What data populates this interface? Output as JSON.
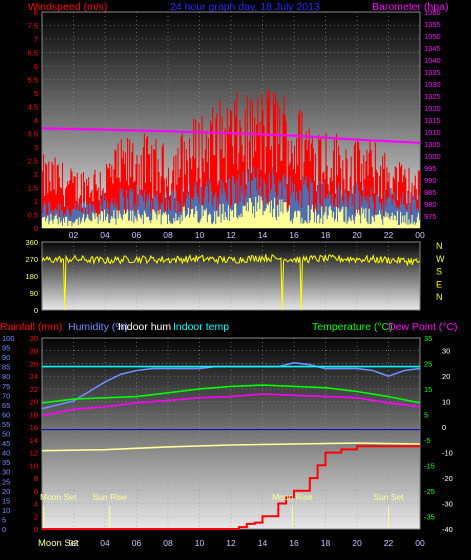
{
  "header": {
    "title": "24 hour graph day, 18 July 2013",
    "left_label": "Windspeed (m/s)",
    "right_label": "Barometer (hpa)"
  },
  "legend": {
    "rainfall": "Rainfall (mm)",
    "humidity": "Humidity (%)",
    "indoor_hum": "Indoor hum",
    "indoor_temp": "Indoor temp",
    "temperature": "Temperature (°C)",
    "dew_point": "Dew Point (°C)"
  },
  "colors": {
    "wind_red": "#ff0000",
    "wind_blue": "#4f6fb0",
    "wind_yellow": "#ffff99",
    "pressure": "#ff00ff",
    "direction": "#ffff00",
    "rain": "#ff0000",
    "humidity": "#6f8fff",
    "indoor_hum": "#ffffff",
    "indoor_temp": "#00ffff",
    "temperature": "#00ff00",
    "dew_point": "#ff00ff",
    "indoor_hum_line": "#ffff99",
    "blue_ref_line": "#0000cc",
    "sun_moon": "#ffff99"
  },
  "chart_data": [
    {
      "type": "area",
      "id": "wind",
      "title": "24 hour graph day, 18 July 2013",
      "ylabel": "Windspeed (m/s)",
      "y2label": "Barometer (hpa)",
      "ylim": [
        0,
        8
      ],
      "y2lim": [
        970,
        1060
      ],
      "yticks": [
        "0",
        "0.5",
        "1",
        "1.5",
        "2",
        "2.5",
        "3",
        "3.5",
        "4",
        "4.5",
        "5",
        "5.5",
        "6",
        "6.5",
        "7",
        "7.5",
        "8"
      ],
      "y2ticks": [
        "975",
        "980",
        "985",
        "990",
        "995",
        "1000",
        "1005",
        "1010",
        "1015",
        "1020",
        "1025",
        "1030",
        "1035",
        "1040",
        "1045",
        "1050",
        "1055",
        "1060"
      ],
      "xticks": [
        "02",
        "04",
        "06",
        "08",
        "10",
        "12",
        "14",
        "16",
        "18",
        "20",
        "22",
        "00"
      ],
      "series": [
        {
          "name": "gust",
          "x": [
            0,
            1,
            2,
            3,
            4,
            5,
            6,
            7,
            8,
            9,
            10,
            11,
            12,
            13,
            14,
            15,
            16,
            17,
            18,
            19,
            20,
            21,
            22,
            23,
            24
          ],
          "values": [
            2.5,
            2.4,
            2.0,
            2.2,
            2.4,
            3.0,
            3.3,
            3.1,
            2.8,
            3.4,
            4.0,
            4.3,
            4.6,
            4.5,
            4.8,
            5.0,
            4.2,
            4.1,
            3.6,
            3.2,
            3.1,
            3.0,
            2.6,
            2.2,
            2.0
          ]
        },
        {
          "name": "average",
          "x": [
            0,
            1,
            2,
            3,
            4,
            5,
            6,
            7,
            8,
            9,
            10,
            11,
            12,
            13,
            14,
            15,
            16,
            17,
            18,
            19,
            20,
            21,
            22,
            23,
            24
          ],
          "values": [
            0.8,
            0.9,
            0.7,
            0.9,
            1.1,
            1.2,
            1.3,
            1.2,
            1.1,
            1.3,
            1.4,
            1.5,
            1.6,
            1.7,
            1.9,
            1.8,
            1.6,
            1.6,
            1.4,
            1.3,
            1.3,
            1.2,
            1.2,
            1.1,
            1.0
          ]
        },
        {
          "name": "speed",
          "x": [
            0,
            1,
            2,
            3,
            4,
            5,
            6,
            7,
            8,
            9,
            10,
            11,
            12,
            13,
            14,
            15,
            16,
            17,
            18,
            19,
            20,
            21,
            22,
            23,
            24
          ],
          "values": [
            0.4,
            0.4,
            0.3,
            0.4,
            0.5,
            0.5,
            0.6,
            0.5,
            0.5,
            0.6,
            0.6,
            0.7,
            0.7,
            0.8,
            0.9,
            0.8,
            0.7,
            0.7,
            0.6,
            0.6,
            0.6,
            0.5,
            0.5,
            0.5,
            0.4
          ]
        },
        {
          "name": "barometer",
          "axis": "right",
          "x": [
            0,
            4,
            8,
            12,
            16,
            20,
            24
          ],
          "values": [
            1011.5,
            1011.0,
            1010.3,
            1009.5,
            1008.5,
            1006.8,
            1005.5
          ]
        }
      ]
    },
    {
      "type": "line",
      "id": "direction",
      "ylim": [
        0,
        360
      ],
      "yticks": [
        "0",
        "90",
        "180",
        "270",
        "360"
      ],
      "compass": [
        "N",
        "W",
        "S",
        "E",
        "N"
      ],
      "series": [
        {
          "name": "direction",
          "x": [
            0,
            2,
            4,
            6,
            8,
            10,
            12,
            14,
            16,
            18,
            20,
            22,
            24
          ],
          "values": [
            265,
            270,
            262,
            270,
            266,
            272,
            264,
            278,
            268,
            272,
            270,
            265,
            255
          ]
        }
      ]
    },
    {
      "type": "line",
      "id": "climate",
      "ylabel": "Rainfall (mm)",
      "y2label": "Temperature (°C)",
      "ylim_hum": [
        0,
        100
      ],
      "ylim_rain": [
        0,
        30
      ],
      "ylim_temp": [
        -40,
        35
      ],
      "hum_ticks": [
        "0",
        "5",
        "10",
        "15",
        "20",
        "25",
        "30",
        "35",
        "40",
        "45",
        "50",
        "55",
        "60",
        "65",
        "70",
        "75",
        "80",
        "85",
        "90",
        "95",
        "100"
      ],
      "rain_ticks": [
        "0",
        "2",
        "4",
        "6",
        "8",
        "10",
        "12",
        "14",
        "16",
        "18",
        "20",
        "22",
        "24",
        "26",
        "28",
        "30"
      ],
      "temp_ticks": [
        "-40",
        "-35",
        "-30",
        "-25",
        "-20",
        "-15",
        "-10",
        "-5",
        "0",
        "5",
        "10",
        "15",
        "20",
        "25",
        "30",
        "35"
      ],
      "xticks": [
        "02",
        "04",
        "06",
        "08",
        "10",
        "12",
        "14",
        "16",
        "18",
        "20",
        "22",
        "00"
      ],
      "series": [
        {
          "name": "Humidity (%)",
          "axis": "hum",
          "x": [
            0,
            1,
            2,
            3,
            4,
            5,
            6,
            7,
            8,
            9,
            10,
            11,
            12,
            13,
            14,
            15,
            16,
            17,
            18,
            19,
            20,
            21,
            22,
            23,
            24
          ],
          "values": [
            63,
            65,
            67,
            72,
            77,
            81,
            83,
            84,
            84,
            84,
            84,
            85,
            85,
            85,
            85,
            85,
            87,
            86,
            84,
            84,
            84,
            83,
            80,
            83,
            84
          ]
        },
        {
          "name": "Indoor temp",
          "axis": "hum",
          "x": [
            0,
            24
          ],
          "values": [
            85,
            85
          ]
        },
        {
          "name": "Indoor hum",
          "axis": "hum",
          "x": [
            0,
            4,
            8,
            12,
            16,
            20,
            24
          ],
          "values": [
            41,
            41.5,
            43,
            44,
            44.5,
            45,
            44.5
          ]
        },
        {
          "name": "Temperature (°C)",
          "axis": "temp",
          "x": [
            0,
            2,
            4,
            6,
            8,
            10,
            12,
            14,
            16,
            18,
            20,
            22,
            24
          ],
          "values": [
            9.5,
            11,
            11.5,
            12,
            13.5,
            15,
            16,
            16.5,
            16,
            15.5,
            14,
            12,
            9.5
          ]
        },
        {
          "name": "Dew Point (°C)",
          "axis": "temp",
          "x": [
            0,
            2,
            4,
            6,
            8,
            10,
            12,
            14,
            16,
            18,
            20,
            22,
            24
          ],
          "values": [
            4.5,
            7,
            8,
            9.5,
            10.5,
            11.5,
            12,
            13,
            12.5,
            12,
            11.5,
            9.5,
            8
          ]
        },
        {
          "name": "Rainfall (mm)",
          "axis": "rain",
          "x": [
            0,
            10,
            12.5,
            13,
            13.5,
            14,
            15,
            15.5,
            16,
            17,
            17.5,
            18,
            19,
            20,
            21,
            22,
            22.5,
            24
          ],
          "values": [
            0,
            0,
            0.3,
            0.8,
            1,
            2,
            4,
            5,
            6,
            8,
            10,
            12,
            12.5,
            13,
            13,
            13,
            13,
            13
          ]
        }
      ],
      "ref_line": {
        "axis": "hum",
        "value": 52
      },
      "events": [
        {
          "label": "Moon Set",
          "hour": 0.1
        },
        {
          "label": "Sun Rise",
          "hour": 4.3
        },
        {
          "label": "Moon Rise",
          "hour": 15.9
        },
        {
          "label": "Sun Set",
          "hour": 22.0
        }
      ],
      "footer_label": "Moon Set"
    }
  ]
}
